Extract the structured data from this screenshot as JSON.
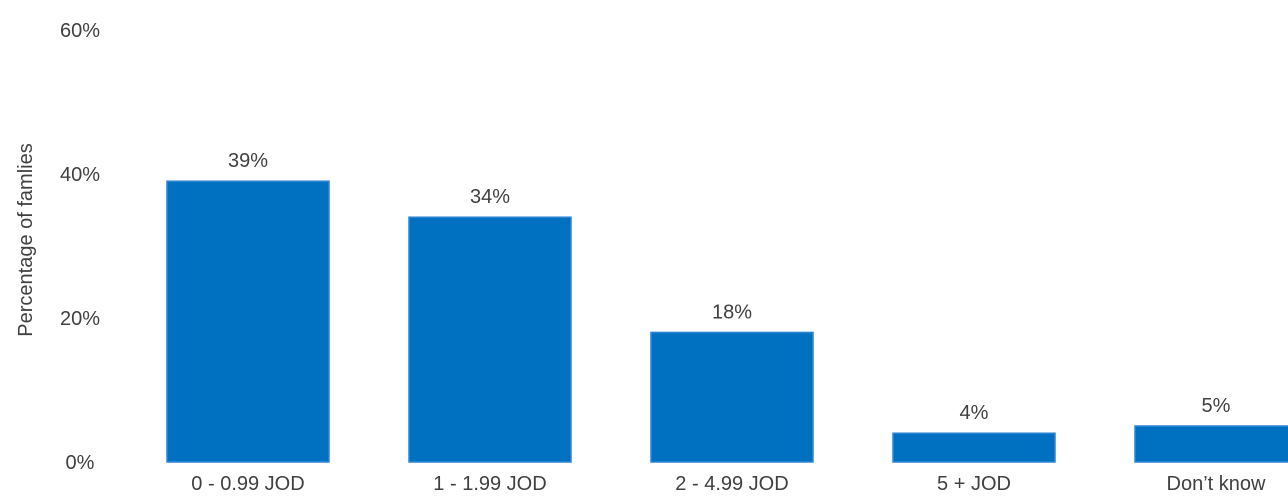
{
  "chart_data": {
    "type": "bar",
    "title": "",
    "xlabel": "",
    "ylabel": "Percentage of famlies",
    "categories": [
      "0 - 0.99 JOD",
      "1 - 1.99 JOD",
      "2 - 4.99 JOD",
      "5 + JOD",
      "Don’t know"
    ],
    "values": [
      39,
      34,
      18,
      4,
      5
    ],
    "data_labels": [
      "39%",
      "34%",
      "18%",
      "4%",
      "5%"
    ],
    "ylim": [
      0,
      60
    ],
    "yticks": [
      0,
      20,
      40,
      60
    ],
    "ytick_labels": [
      "0%",
      "20%",
      "40%",
      "60%"
    ],
    "grid": false,
    "legend": "none",
    "bar_color": "#0070C0",
    "text_color": "#404040"
  }
}
